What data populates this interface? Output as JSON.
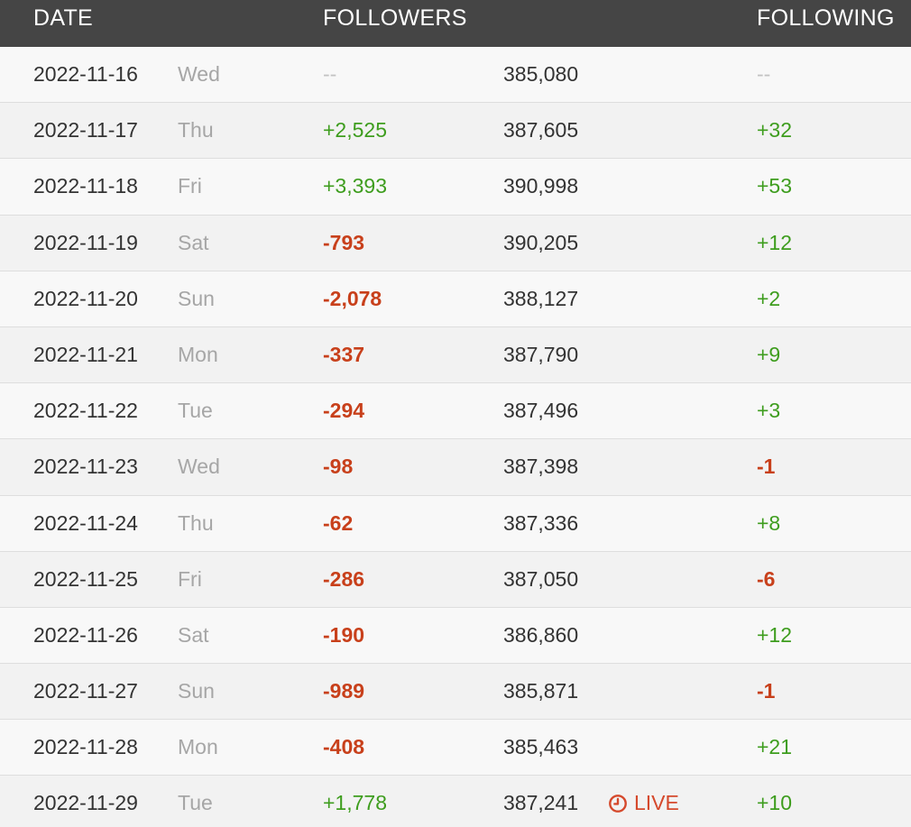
{
  "header": {
    "date": "DATE",
    "followers": "FOLLOWERS",
    "following": "FOLLOWING"
  },
  "rows": [
    {
      "date": "2022-11-16",
      "day": "Wed",
      "followers_change": "--",
      "followers_change_type": "none",
      "followers_total": "385,080",
      "following_change": "--",
      "following_change_type": "none"
    },
    {
      "date": "2022-11-17",
      "day": "Thu",
      "followers_change": "+2,525",
      "followers_change_type": "pos",
      "followers_total": "387,605",
      "following_change": "+32",
      "following_change_type": "pos"
    },
    {
      "date": "2022-11-18",
      "day": "Fri",
      "followers_change": "+3,393",
      "followers_change_type": "pos",
      "followers_total": "390,998",
      "following_change": "+53",
      "following_change_type": "pos"
    },
    {
      "date": "2022-11-19",
      "day": "Sat",
      "followers_change": "-793",
      "followers_change_type": "neg",
      "followers_total": "390,205",
      "following_change": "+12",
      "following_change_type": "pos"
    },
    {
      "date": "2022-11-20",
      "day": "Sun",
      "followers_change": "-2,078",
      "followers_change_type": "neg",
      "followers_total": "388,127",
      "following_change": "+2",
      "following_change_type": "pos"
    },
    {
      "date": "2022-11-21",
      "day": "Mon",
      "followers_change": "-337",
      "followers_change_type": "neg",
      "followers_total": "387,790",
      "following_change": "+9",
      "following_change_type": "pos"
    },
    {
      "date": "2022-11-22",
      "day": "Tue",
      "followers_change": "-294",
      "followers_change_type": "neg",
      "followers_total": "387,496",
      "following_change": "+3",
      "following_change_type": "pos"
    },
    {
      "date": "2022-11-23",
      "day": "Wed",
      "followers_change": "-98",
      "followers_change_type": "neg",
      "followers_total": "387,398",
      "following_change": "-1",
      "following_change_type": "neg"
    },
    {
      "date": "2022-11-24",
      "day": "Thu",
      "followers_change": "-62",
      "followers_change_type": "neg",
      "followers_total": "387,336",
      "following_change": "+8",
      "following_change_type": "pos"
    },
    {
      "date": "2022-11-25",
      "day": "Fri",
      "followers_change": "-286",
      "followers_change_type": "neg",
      "followers_total": "387,050",
      "following_change": "-6",
      "following_change_type": "neg"
    },
    {
      "date": "2022-11-26",
      "day": "Sat",
      "followers_change": "-190",
      "followers_change_type": "neg",
      "followers_total": "386,860",
      "following_change": "+12",
      "following_change_type": "pos"
    },
    {
      "date": "2022-11-27",
      "day": "Sun",
      "followers_change": "-989",
      "followers_change_type": "neg",
      "followers_total": "385,871",
      "following_change": "-1",
      "following_change_type": "neg"
    },
    {
      "date": "2022-11-28",
      "day": "Mon",
      "followers_change": "-408",
      "followers_change_type": "neg",
      "followers_total": "385,463",
      "following_change": "+21",
      "following_change_type": "pos"
    },
    {
      "date": "2022-11-29",
      "day": "Tue",
      "followers_change": "+1,778",
      "followers_change_type": "pos",
      "followers_total": "387,241",
      "following_change": "+10",
      "following_change_type": "pos",
      "live_label": "LIVE",
      "live_icon": "clock-icon"
    }
  ],
  "colors": {
    "header_bg": "#454545",
    "positive": "#3e9d1e",
    "negative": "#c8401b",
    "live": "#d5492c"
  }
}
